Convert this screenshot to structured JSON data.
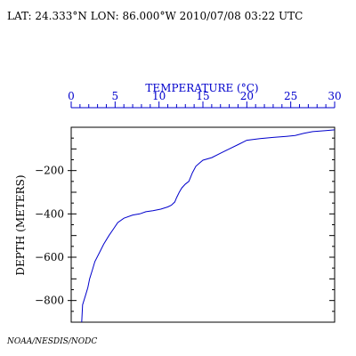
{
  "header": {
    "text": "LAT: 24.333°N LON: 86.000°W 2010/07/08 03:22 UTC"
  },
  "footer": {
    "credit": "NOAA/NESDIS/NODC"
  },
  "colors": {
    "axis_top": "#0000cc",
    "profile": "#0000cc",
    "frame": "#000000",
    "text": "#000000"
  },
  "chart_data": {
    "type": "line",
    "title": "",
    "xlabel": "TEMPERATURE (°C)",
    "ylabel": "DEPTH (METERS)",
    "xlim": [
      0,
      30
    ],
    "ylim": [
      -900,
      0
    ],
    "x_axis_position": "top",
    "x_ticks": [
      0,
      5,
      10,
      15,
      20,
      25,
      30
    ],
    "x_tick_labels": [
      "0",
      "5",
      "10",
      "15",
      "20",
      "25",
      "30"
    ],
    "y_ticks": [
      -200,
      -400,
      -600,
      -800
    ],
    "y_tick_labels": [
      "−200",
      "−400",
      "−600",
      "−800"
    ],
    "grid": false,
    "series": [
      {
        "x": [
          30.0,
          29.0,
          27.5,
          26.5,
          25.5,
          24.5,
          23.0,
          21.5,
          20.0,
          19.0,
          18.0,
          17.0,
          16.0,
          15.0,
          14.6,
          14.2,
          13.8,
          13.4,
          13.0,
          12.6,
          12.3,
          12.0,
          11.8,
          11.4,
          11.0,
          10.2,
          9.3,
          8.5,
          7.8,
          7.0,
          6.0,
          5.3,
          4.8,
          4.3,
          3.7,
          3.2,
          2.7,
          2.4,
          2.1,
          1.9,
          1.6,
          1.3,
          1.2
        ],
        "y": [
          -12,
          -15,
          -20,
          -28,
          -38,
          -42,
          -47,
          -52,
          -60,
          -80,
          -100,
          -120,
          -140,
          -152,
          -165,
          -180,
          -210,
          -250,
          -262,
          -280,
          -300,
          -325,
          -345,
          -360,
          -368,
          -378,
          -385,
          -390,
          -400,
          -405,
          -420,
          -440,
          -470,
          -500,
          -540,
          -580,
          -620,
          -660,
          -700,
          -740,
          -780,
          -820,
          -900
        ]
      }
    ]
  }
}
